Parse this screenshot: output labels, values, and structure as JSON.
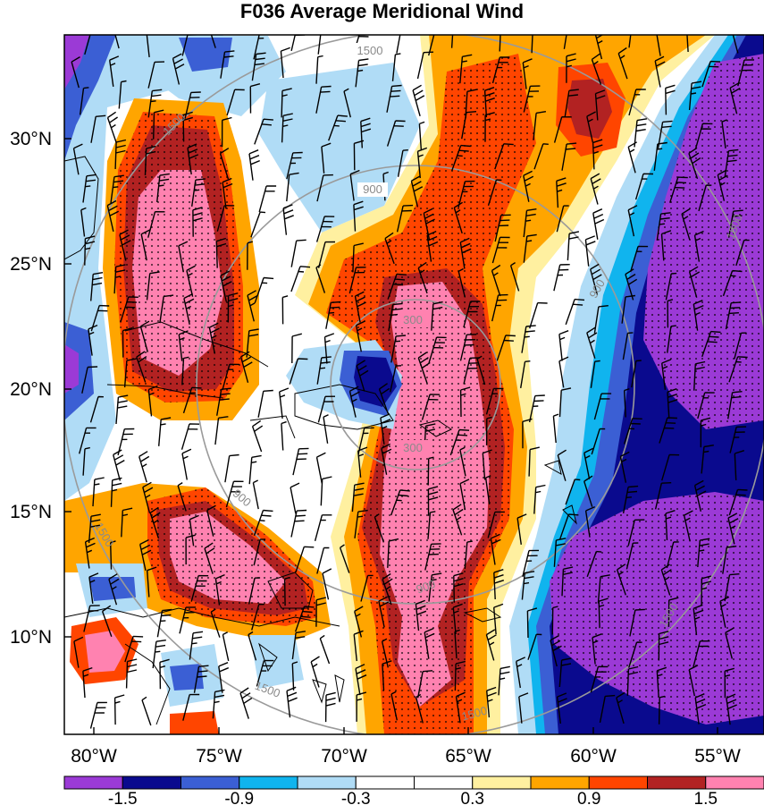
{
  "title": "F036 Average Meridional Wind",
  "lat_ticks": [
    "30°N",
    "25°N",
    "20°N",
    "15°N",
    "10°N"
  ],
  "lon_ticks": [
    "80°W",
    "75°W",
    "70°W",
    "65°W",
    "60°W",
    "55°W"
  ],
  "range_rings": [
    {
      "radius_km": 300,
      "label": "300"
    },
    {
      "radius_km": 900,
      "label": "900"
    },
    {
      "radius_km": 1500,
      "label": "1500"
    }
  ],
  "colorbar": {
    "colors": [
      "#9b3ad6",
      "#0a0a8e",
      "#3b5fd4",
      "#10b4ee",
      "#b0dcf6",
      "#ffffff",
      "#ffffff",
      "#fff0a0",
      "#ffa500",
      "#ff4500",
      "#b22222",
      "#ff82b0"
    ],
    "labels": [
      "-1.5",
      "-0.9",
      "-0.3",
      "0.3",
      "0.9",
      "1.5"
    ]
  }
}
